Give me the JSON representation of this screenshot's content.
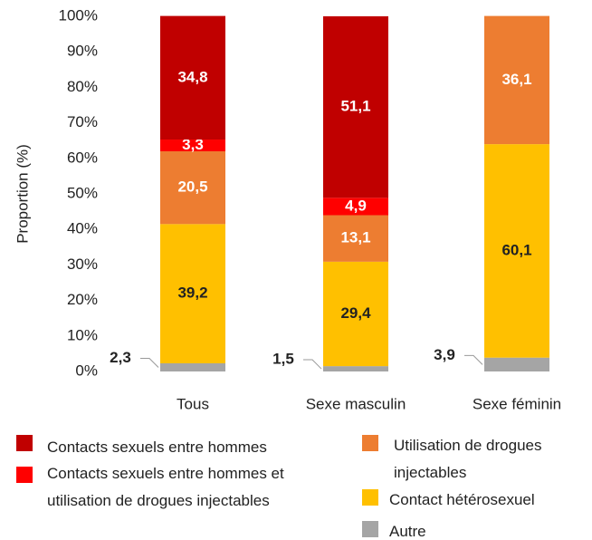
{
  "chart_data": {
    "type": "stacked_bar",
    "y_label": "Proportion (%)",
    "categories": [
      "Tous",
      "Sexe masculin",
      "Sexe féminin"
    ],
    "ylim": [
      0,
      100
    ],
    "yticks": [
      {
        "value": 0,
        "label": "0%"
      },
      {
        "value": 10,
        "label": "10%"
      },
      {
        "value": 20,
        "label": "20%"
      },
      {
        "value": 30,
        "label": "30%"
      },
      {
        "value": 40,
        "label": "40%"
      },
      {
        "value": 50,
        "label": "50%"
      },
      {
        "value": 60,
        "label": "60%"
      },
      {
        "value": 70,
        "label": "70%"
      },
      {
        "value": 80,
        "label": "80%"
      },
      {
        "value": 90,
        "label": "90%"
      },
      {
        "value": 100,
        "label": "100%"
      }
    ],
    "series": [
      {
        "name": "Autre",
        "color": "#a5a5a5",
        "values": [
          2.3,
          1.5,
          3.9
        ],
        "value_labels": [
          "2,3",
          "1,5",
          "3,9"
        ]
      },
      {
        "name": "Contact hétérosexuel",
        "color": "#ffc000",
        "values": [
          39.2,
          29.4,
          60.1
        ],
        "value_labels": [
          "39,2",
          "29,4",
          "60,1"
        ]
      },
      {
        "name": "Utilisation de drogues injectables",
        "color": "#ed7d31",
        "values": [
          20.5,
          13.1,
          36.1
        ],
        "value_labels": [
          "20,5",
          "13,1",
          "36,1"
        ]
      },
      {
        "name": "Contacts sexuels entre hommes et utilisation de drogues injectables",
        "color": "#ff0000",
        "values": [
          3.3,
          4.9,
          null
        ],
        "value_labels": [
          "3,3",
          "4,9",
          null
        ]
      },
      {
        "name": "Contacts sexuels entre hommes",
        "color": "#c00000",
        "values": [
          34.8,
          51.1,
          null
        ],
        "value_labels": [
          "34,8",
          "51,1",
          null
        ]
      }
    ]
  }
}
